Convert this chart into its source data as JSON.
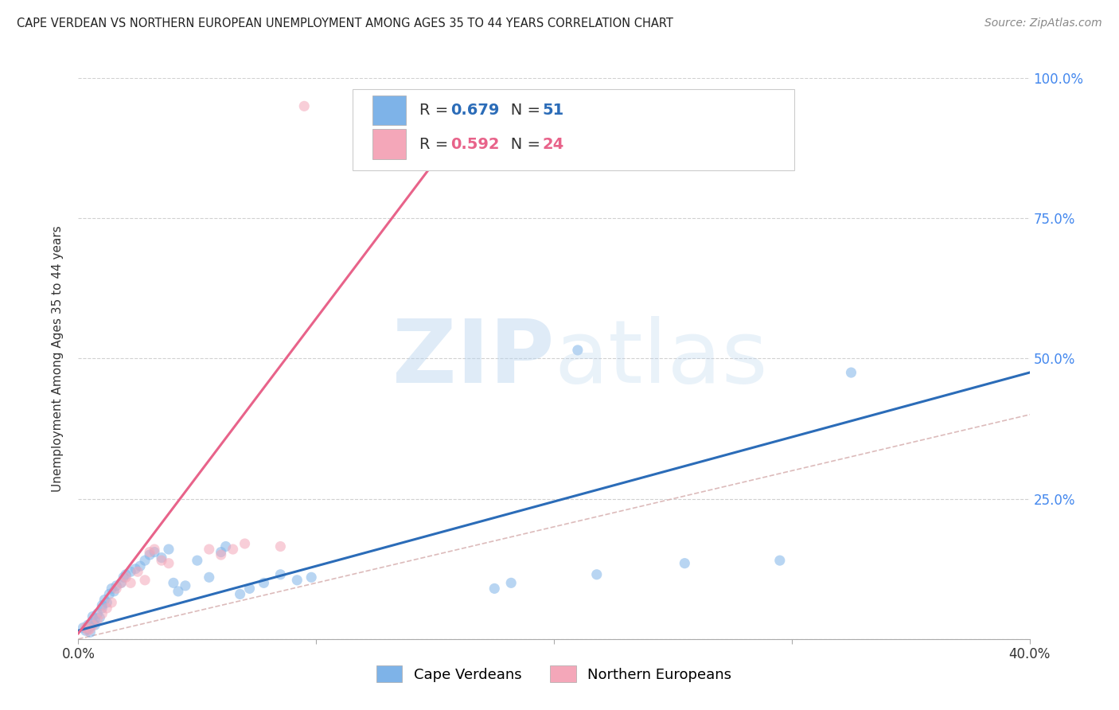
{
  "title": "CAPE VERDEAN VS NORTHERN EUROPEAN UNEMPLOYMENT AMONG AGES 35 TO 44 YEARS CORRELATION CHART",
  "source": "Source: ZipAtlas.com",
  "ylabel": "Unemployment Among Ages 35 to 44 years",
  "xlim": [
    0.0,
    0.4
  ],
  "ylim": [
    0.0,
    1.0
  ],
  "xticks": [
    0.0,
    0.1,
    0.2,
    0.3,
    0.4
  ],
  "xtick_labels": [
    "0.0%",
    "",
    "",
    "",
    "40.0%"
  ],
  "yticks": [
    0.0,
    0.25,
    0.5,
    0.75,
    1.0
  ],
  "ytick_labels_right": [
    "",
    "25.0%",
    "50.0%",
    "75.0%",
    "100.0%"
  ],
  "blue_color": "#7EB3E8",
  "pink_color": "#F4A7B9",
  "blue_line_color": "#2B6CB8",
  "pink_line_color": "#E8638A",
  "ref_line_color": "#D4AAAA",
  "blue_R": 0.679,
  "blue_N": 51,
  "pink_R": 0.592,
  "pink_N": 24,
  "legend_label_blue": "Cape Verdeans",
  "legend_label_pink": "Northern Europeans",
  "blue_line_x": [
    0.0,
    0.4
  ],
  "blue_line_y": [
    0.015,
    0.475
  ],
  "pink_line_x": [
    0.0,
    0.155
  ],
  "pink_line_y": [
    0.01,
    0.88
  ],
  "ref_line_x": [
    0.0,
    1.0
  ],
  "ref_line_y": [
    0.0,
    1.0
  ],
  "blue_scatter_x": [
    0.002,
    0.003,
    0.004,
    0.004,
    0.005,
    0.005,
    0.006,
    0.006,
    0.007,
    0.007,
    0.008,
    0.009,
    0.01,
    0.01,
    0.011,
    0.012,
    0.013,
    0.014,
    0.015,
    0.016,
    0.018,
    0.019,
    0.02,
    0.022,
    0.024,
    0.026,
    0.028,
    0.03,
    0.032,
    0.035,
    0.038,
    0.04,
    0.042,
    0.045,
    0.05,
    0.055,
    0.06,
    0.062,
    0.068,
    0.072,
    0.078,
    0.085,
    0.092,
    0.098,
    0.175,
    0.182,
    0.21,
    0.218,
    0.255,
    0.295,
    0.325
  ],
  "blue_scatter_y": [
    0.02,
    0.015,
    0.018,
    0.025,
    0.012,
    0.022,
    0.03,
    0.04,
    0.025,
    0.035,
    0.045,
    0.038,
    0.055,
    0.06,
    0.07,
    0.065,
    0.08,
    0.09,
    0.085,
    0.095,
    0.1,
    0.11,
    0.115,
    0.12,
    0.125,
    0.13,
    0.14,
    0.15,
    0.155,
    0.145,
    0.16,
    0.1,
    0.085,
    0.095,
    0.14,
    0.11,
    0.155,
    0.165,
    0.08,
    0.09,
    0.1,
    0.115,
    0.105,
    0.11,
    0.09,
    0.1,
    0.515,
    0.115,
    0.135,
    0.14,
    0.475
  ],
  "pink_scatter_x": [
    0.003,
    0.004,
    0.005,
    0.006,
    0.008,
    0.01,
    0.012,
    0.014,
    0.016,
    0.018,
    0.02,
    0.022,
    0.025,
    0.028,
    0.03,
    0.032,
    0.035,
    0.038,
    0.055,
    0.06,
    0.065,
    0.07,
    0.085,
    0.095
  ],
  "pink_scatter_y": [
    0.02,
    0.015,
    0.018,
    0.025,
    0.035,
    0.045,
    0.055,
    0.065,
    0.09,
    0.1,
    0.11,
    0.1,
    0.12,
    0.105,
    0.155,
    0.16,
    0.14,
    0.135,
    0.16,
    0.15,
    0.16,
    0.17,
    0.165,
    0.95
  ]
}
